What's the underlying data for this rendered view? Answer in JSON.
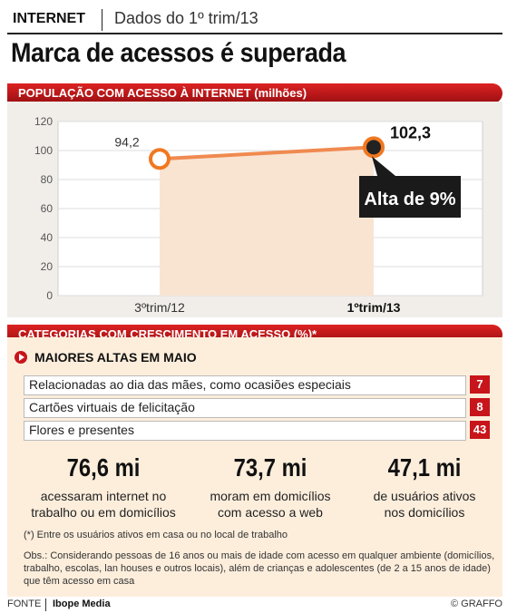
{
  "header": {
    "kicker": "INTERNET",
    "kicker_detail": "Dados do 1º trim/13",
    "headline": "Marca de acessos é superada"
  },
  "section_chart": {
    "title": "POPULAÇÃO COM ACESSO À INTERNET (milhões)"
  },
  "chart_data": {
    "type": "line",
    "categories": [
      "3ºtrim/12",
      "1ºtrim/13"
    ],
    "values": [
      94.2,
      102.3
    ],
    "value_labels": [
      "94,2",
      "102,3"
    ],
    "y_ticks": [
      "0",
      "20",
      "40",
      "60",
      "80",
      "100",
      "120"
    ],
    "ylim": [
      0,
      120
    ],
    "annotation": "Alta de 9%",
    "colors": {
      "line": "#f08a50",
      "marker_fill_end": "#222222",
      "marker_ring": "#f07820",
      "area": "#f9e4d2"
    }
  },
  "section_categories": {
    "title": "CATEGORIAS COM CRESCIMENTO EM ACESSO (%)*",
    "subhead": "MAIORES ALTAS EM MAIO",
    "items": [
      {
        "label": "Relacionadas ao dia das mães, como ocasiões especiais",
        "value": "7"
      },
      {
        "label": "Cartões virtuais de felicitação",
        "value": "8"
      },
      {
        "label": "Flores e presentes",
        "value": "43"
      }
    ]
  },
  "stats": [
    {
      "number": "76,6 mi",
      "line1": "acessaram internet no",
      "line2": "trabalho ou em domicílios"
    },
    {
      "number": "73,7 mi",
      "line1": "moram em domicílios",
      "line2": "com acesso a web"
    },
    {
      "number": "47,1 mi",
      "line1": "de usuários ativos",
      "line2": "nos domicílios"
    }
  ],
  "footnote": "(*) Entre os usuários ativos em casa ou no local de trabalho",
  "obs": "Obs.: Considerando pessoas de 16 anos ou mais de idade com acesso em qualquer ambiente (domicílios, trabalho, escolas, lan houses e outros locais), além de crianças e adolescentes (de 2 a 15 anos de idade) que têm acesso em casa",
  "footer": {
    "fonte_label": "FONTE",
    "fonte_value": "Ibope Media",
    "credit": "© GRAFFO"
  }
}
